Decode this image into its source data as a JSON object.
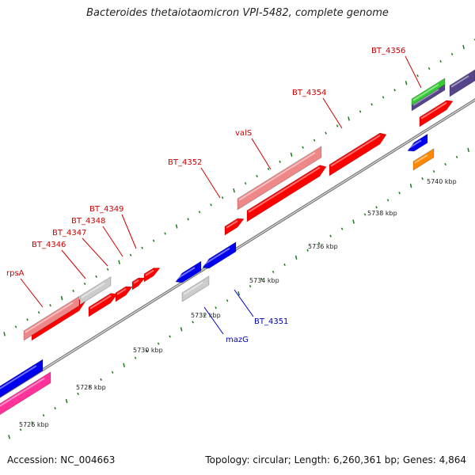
{
  "title": "Bacteroides thetaiotaomicron VPI-5482, complete genome",
  "accession": "Accession: NC_004663",
  "summary": "Topology: circular; Length: 6,260,361 bp; Genes: 4,864",
  "scale_labels": [
    "5726 kbp",
    "5728 kbp",
    "5730 kbp",
    "5732 kbp",
    "5734 kbp",
    "5736 kbp",
    "5738 kbp",
    "5740 kbp"
  ],
  "colors": {
    "backbone": "#888888",
    "tick": "#1a7a1a",
    "label_forward": "#cc0000",
    "label_reverse": "#0000bb",
    "red": "#ff0000",
    "pink": "#ee8888",
    "gray": "#cccccc",
    "blue": "#0000ee",
    "magenta": "#ff3399",
    "green": "#33cc33",
    "purple": "#554488",
    "orange": "#ff8800"
  },
  "gene_labels": [
    {
      "id": "rpsA",
      "text": "rpsA",
      "strand": "forward"
    },
    {
      "id": "BT_4346",
      "text": "BT_4346",
      "strand": "forward"
    },
    {
      "id": "BT_4347",
      "text": "BT_4347",
      "strand": "forward"
    },
    {
      "id": "BT_4348",
      "text": "BT_4348",
      "strand": "forward"
    },
    {
      "id": "BT_4349",
      "text": "BT_4349",
      "strand": "forward"
    },
    {
      "id": "BT_4352",
      "text": "BT_4352",
      "strand": "forward"
    },
    {
      "id": "valS",
      "text": "valS",
      "strand": "forward"
    },
    {
      "id": "BT_4354",
      "text": "BT_4354",
      "strand": "forward"
    },
    {
      "id": "BT_4356",
      "text": "BT_4356",
      "strand": "forward"
    },
    {
      "id": "mazG",
      "text": "mazG",
      "strand": "reverse"
    },
    {
      "id": "BT_4351",
      "text": "BT_4351",
      "strand": "reverse"
    }
  ]
}
